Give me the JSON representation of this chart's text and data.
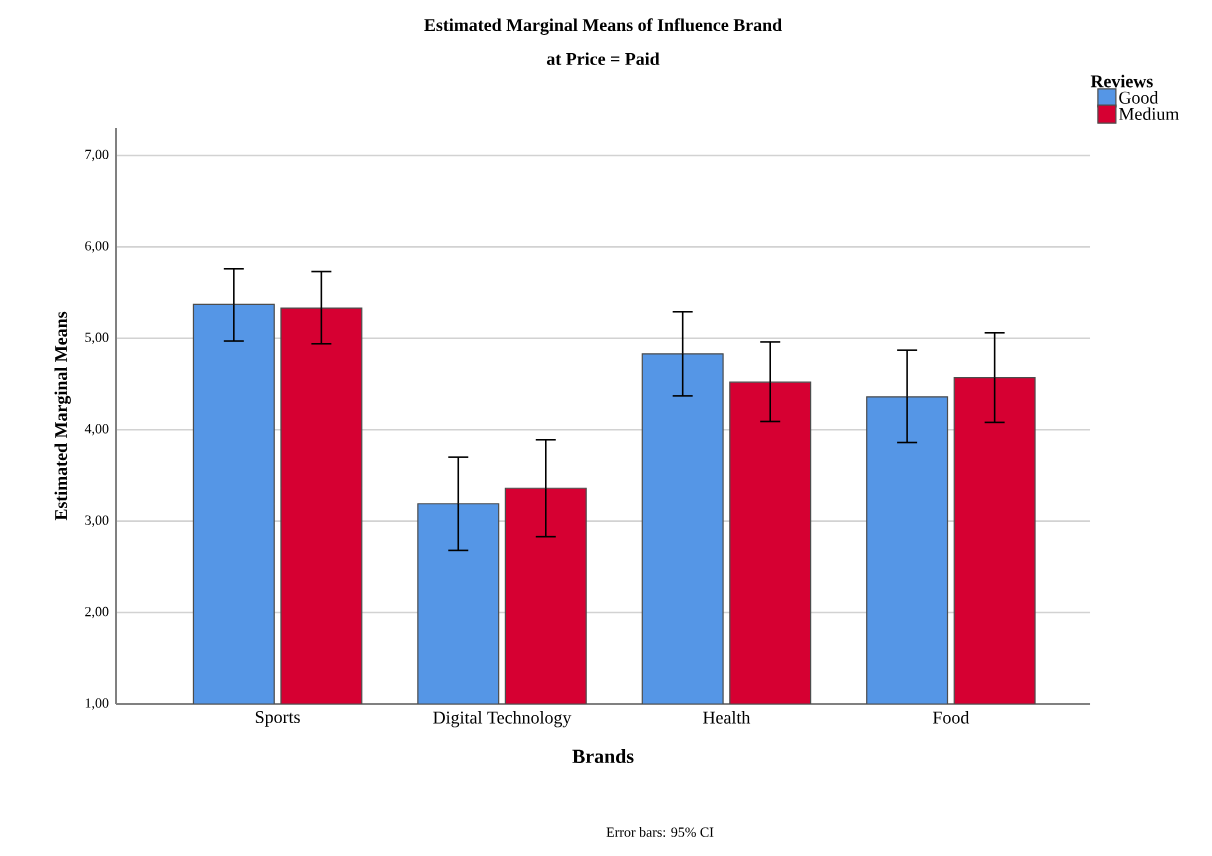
{
  "chart_data": {
    "type": "bar",
    "title": "Estimated Marginal Means of Influence Brand",
    "subtitle": "at Price = Paid",
    "xlabel": "Brands",
    "ylabel": "Estimated Marginal Means",
    "legend_title": "Reviews",
    "categories": [
      "Sports",
      "Digital Technology",
      "Health",
      "Food"
    ],
    "series": [
      {
        "name": "Good",
        "color": "#5596e6",
        "values": [
          5.37,
          3.19,
          4.83,
          4.36
        ],
        "errors": [
          [
            4.97,
            5.76
          ],
          [
            2.68,
            3.7
          ],
          [
            4.37,
            5.29
          ],
          [
            3.86,
            4.87
          ]
        ]
      },
      {
        "name": "Medium",
        "color": "#d60032",
        "values": [
          5.33,
          3.36,
          4.52,
          4.57
        ],
        "errors": [
          [
            4.94,
            5.73
          ],
          [
            2.83,
            3.89
          ],
          [
            4.09,
            4.96
          ],
          [
            4.08,
            5.06
          ]
        ]
      }
    ],
    "ylim": [
      1,
      7.3
    ],
    "yticks": [
      {
        "value": 1,
        "label": "1,00"
      },
      {
        "value": 2,
        "label": "2,00"
      },
      {
        "value": 3,
        "label": "3,00"
      },
      {
        "value": 4,
        "label": "4,00"
      },
      {
        "value": 5,
        "label": "5,00"
      },
      {
        "value": 6,
        "label": "6,00"
      },
      {
        "value": 7,
        "label": "7,00"
      }
    ],
    "grid": "y",
    "legend": "top right",
    "annotations": [
      "Error bars: 95% CI"
    ]
  }
}
